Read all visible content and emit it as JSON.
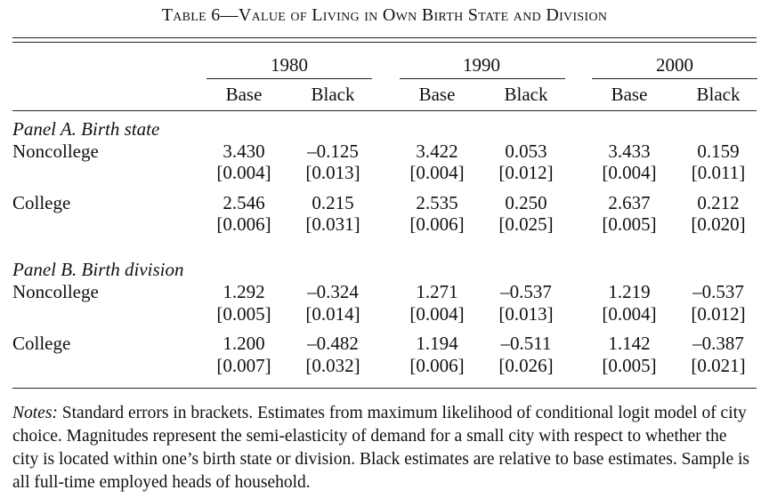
{
  "title": "Table 6—Value of Living in Own Birth State and Division",
  "years": [
    "1980",
    "1990",
    "2000"
  ],
  "subheaders": [
    "Base",
    "Black",
    "Base",
    "Black",
    "Base",
    "Black"
  ],
  "panels": [
    {
      "label": "Panel A. Birth state",
      "rows": [
        {
          "name": "Noncollege",
          "est": [
            "3.430",
            "–0.125",
            "3.422",
            "0.053",
            "3.433",
            "0.159"
          ],
          "se": [
            "[0.004]",
            "[0.013]",
            "[0.004]",
            "[0.012]",
            "[0.004]",
            "[0.011]"
          ]
        },
        {
          "name": "College",
          "est": [
            "2.546",
            "0.215",
            "2.535",
            "0.250",
            "2.637",
            "0.212"
          ],
          "se": [
            "[0.006]",
            "[0.031]",
            "[0.006]",
            "[0.025]",
            "[0.005]",
            "[0.020]"
          ]
        }
      ]
    },
    {
      "label": "Panel B. Birth division",
      "rows": [
        {
          "name": "Noncollege",
          "est": [
            "1.292",
            "–0.324",
            "1.271",
            "–0.537",
            "1.219",
            "–0.537"
          ],
          "se": [
            "[0.005]",
            "[0.014]",
            "[0.004]",
            "[0.013]",
            "[0.004]",
            "[0.012]"
          ]
        },
        {
          "name": "College",
          "est": [
            "1.200",
            "–0.482",
            "1.194",
            "–0.511",
            "1.142",
            "–0.387"
          ],
          "se": [
            "[0.007]",
            "[0.032]",
            "[0.006]",
            "[0.026]",
            "[0.005]",
            "[0.021]"
          ]
        }
      ]
    }
  ],
  "notes_label": "Notes:",
  "notes_text": " Standard errors in brackets. Estimates from maximum likelihood of conditional logit model of city choice. Magnitudes represent the semi-elasticity of demand for a small city with respect to whether the city is located within one’s birth state or division. Black estimates are relative to base estimates. Sample is all full-time employed heads of household."
}
